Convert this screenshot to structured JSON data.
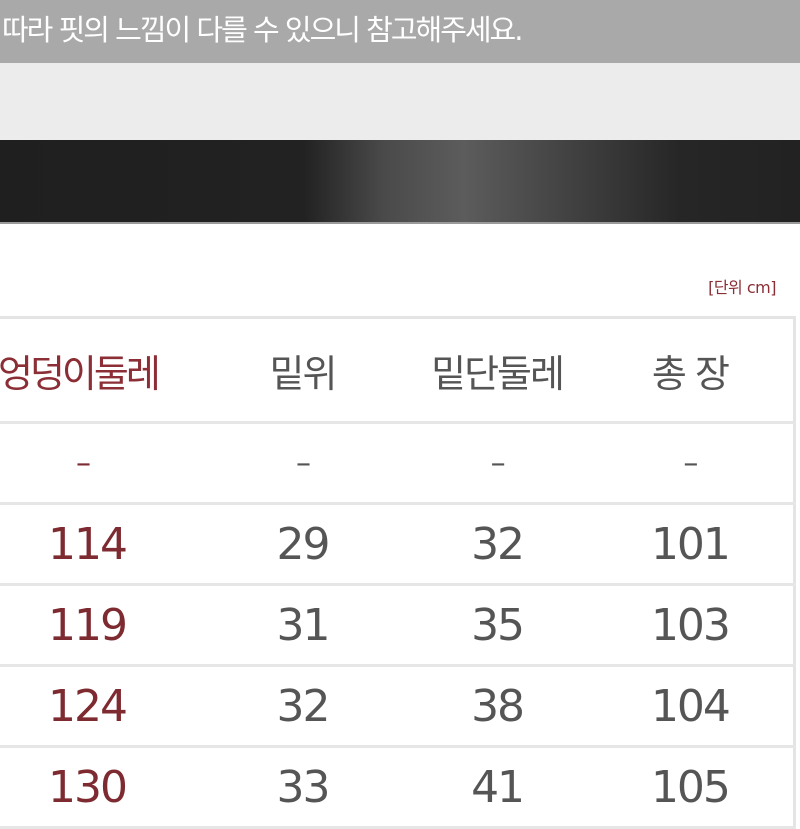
{
  "notice": "따라 핏의 느낌이 다를 수 있으니 참고해주세요.",
  "unit_label": "[단위 cm]",
  "colors": {
    "accent": "#8b2e35",
    "text": "#555555",
    "notice_bg": "#a9a9a9"
  },
  "table": {
    "headers": [
      "엉덩이둘레",
      "밑위",
      "밑단둘레",
      "총 장"
    ],
    "rows": [
      [
        "–",
        "–",
        "–",
        "–"
      ],
      [
        "114",
        "29",
        "32",
        "101"
      ],
      [
        "119",
        "31",
        "35",
        "103"
      ],
      [
        "124",
        "32",
        "38",
        "104"
      ],
      [
        "130",
        "33",
        "41",
        "105"
      ]
    ]
  }
}
